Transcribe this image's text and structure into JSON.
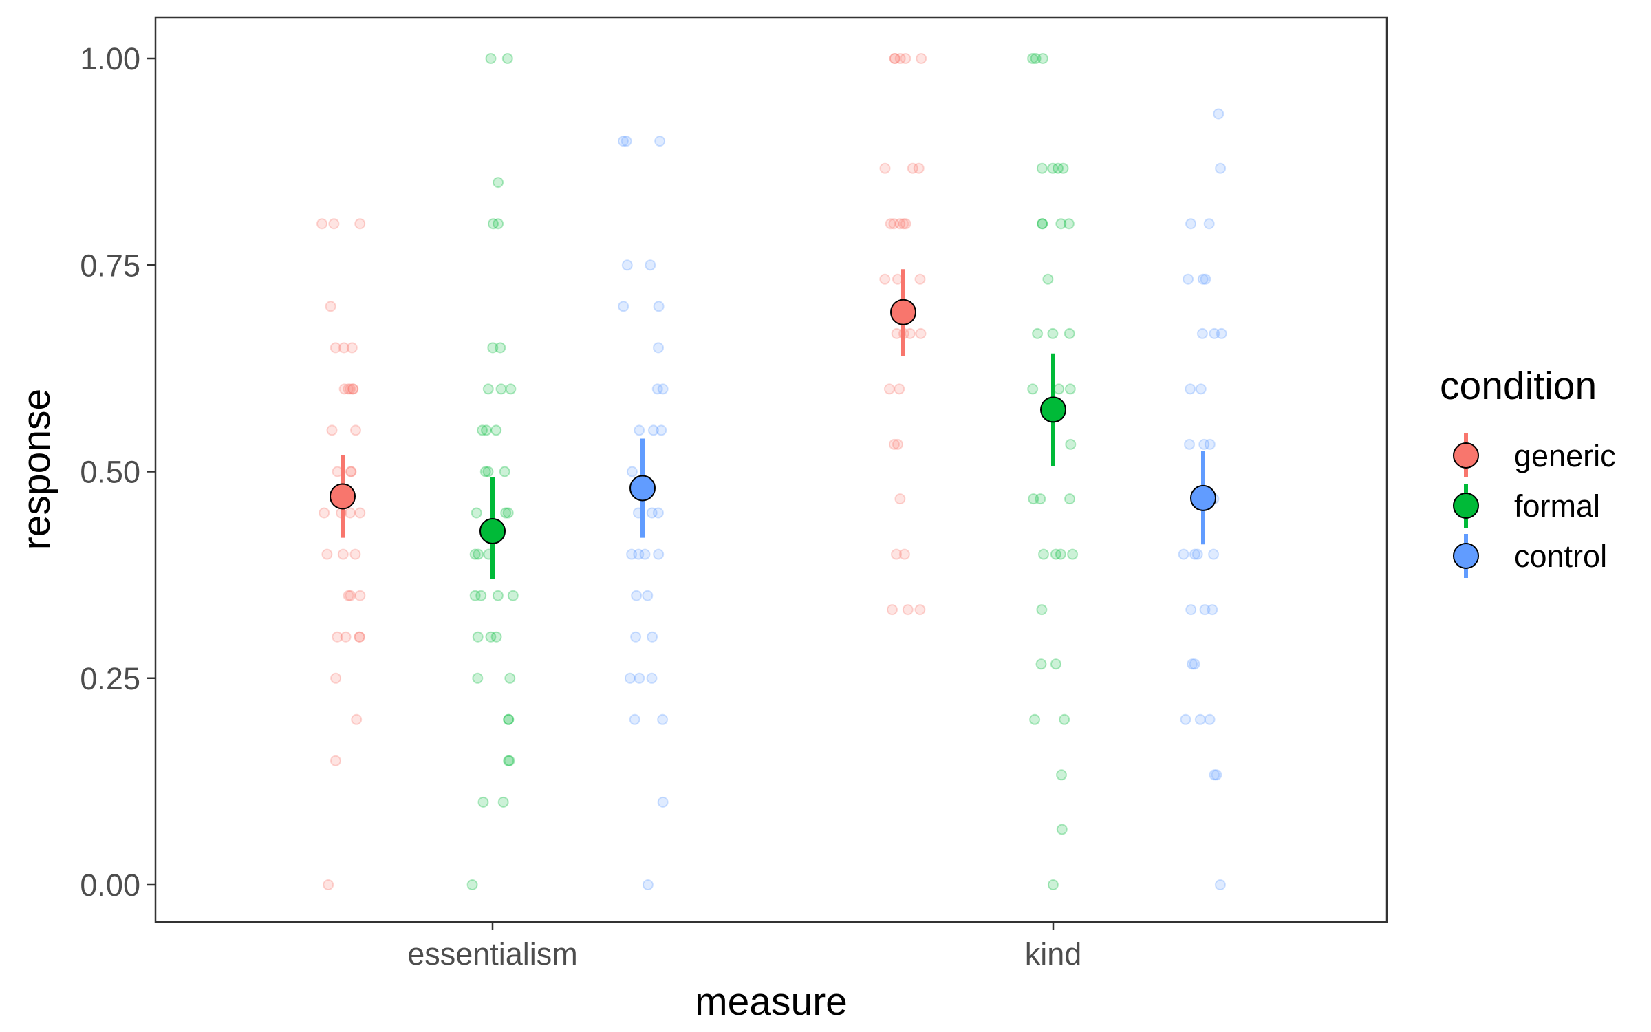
{
  "chart_data": {
    "type": "scatter",
    "xlabel": "measure",
    "ylabel": "response",
    "categories": [
      "essentialism",
      "kind"
    ],
    "ylim": [
      -0.05,
      1.05
    ],
    "yticks": [
      "0.00",
      "0.25",
      "0.50",
      "0.75",
      "1.00"
    ],
    "grid": false,
    "legend": {
      "title": "condition",
      "position": "right",
      "entries": [
        "generic",
        "formal",
        "control"
      ]
    },
    "colors": {
      "generic": "#F8766D",
      "formal": "#00BA38",
      "control": "#619CFF"
    },
    "series": [
      {
        "name": "generic",
        "summary": [
          {
            "category": "essentialism",
            "mean": 0.47,
            "ci_low": 0.42,
            "ci_high": 0.52
          },
          {
            "category": "kind",
            "mean": 0.693,
            "ci_low": 0.64,
            "ci_high": 0.745
          }
        ],
        "raw": [
          {
            "category": "essentialism",
            "values": [
              0.8,
              0.8,
              0.8,
              0.7,
              0.65,
              0.65,
              0.65,
              0.6,
              0.6,
              0.6,
              0.6,
              0.6,
              0.55,
              0.55,
              0.5,
              0.5,
              0.5,
              0.45,
              0.45,
              0.45,
              0.45,
              0.4,
              0.4,
              0.4,
              0.35,
              0.35,
              0.35,
              0.3,
              0.3,
              0.3,
              0.3,
              0.25,
              0.2,
              0.15,
              0.0
            ]
          },
          {
            "category": "kind",
            "values": [
              1.0,
              1.0,
              1.0,
              1.0,
              1.0,
              0.867,
              0.867,
              0.867,
              0.8,
              0.8,
              0.8,
              0.8,
              0.8,
              0.733,
              0.733,
              0.733,
              0.667,
              0.667,
              0.667,
              0.667,
              0.6,
              0.6,
              0.533,
              0.533,
              0.467,
              0.4,
              0.4,
              0.333,
              0.333,
              0.333
            ]
          }
        ]
      },
      {
        "name": "formal",
        "summary": [
          {
            "category": "essentialism",
            "mean": 0.428,
            "ci_low": 0.37,
            "ci_high": 0.493
          },
          {
            "category": "kind",
            "mean": 0.575,
            "ci_low": 0.507,
            "ci_high": 0.643
          }
        ],
        "raw": [
          {
            "category": "essentialism",
            "values": [
              1.0,
              1.0,
              0.85,
              0.8,
              0.8,
              0.65,
              0.65,
              0.6,
              0.6,
              0.6,
              0.55,
              0.55,
              0.55,
              0.5,
              0.5,
              0.5,
              0.45,
              0.45,
              0.45,
              0.4,
              0.4,
              0.4,
              0.35,
              0.35,
              0.35,
              0.35,
              0.3,
              0.3,
              0.3,
              0.25,
              0.25,
              0.2,
              0.2,
              0.15,
              0.15,
              0.1,
              0.1,
              0.0
            ]
          },
          {
            "category": "kind",
            "values": [
              1.0,
              1.0,
              1.0,
              0.867,
              0.867,
              0.867,
              0.867,
              0.8,
              0.8,
              0.8,
              0.8,
              0.733,
              0.667,
              0.667,
              0.667,
              0.6,
              0.6,
              0.6,
              0.533,
              0.467,
              0.467,
              0.467,
              0.4,
              0.4,
              0.4,
              0.4,
              0.333,
              0.267,
              0.267,
              0.2,
              0.2,
              0.133,
              0.067,
              0.0
            ]
          }
        ]
      },
      {
        "name": "control",
        "summary": [
          {
            "category": "essentialism",
            "mean": 0.48,
            "ci_low": 0.42,
            "ci_high": 0.54
          },
          {
            "category": "kind",
            "mean": 0.468,
            "ci_low": 0.412,
            "ci_high": 0.525
          }
        ],
        "raw": [
          {
            "category": "essentialism",
            "values": [
              0.9,
              0.9,
              0.9,
              0.75,
              0.75,
              0.7,
              0.7,
              0.65,
              0.6,
              0.6,
              0.55,
              0.55,
              0.55,
              0.5,
              0.45,
              0.45,
              0.45,
              0.4,
              0.4,
              0.4,
              0.4,
              0.35,
              0.35,
              0.3,
              0.3,
              0.25,
              0.25,
              0.25,
              0.2,
              0.2,
              0.1,
              0.0
            ]
          },
          {
            "category": "kind",
            "values": [
              0.933,
              0.867,
              0.8,
              0.8,
              0.733,
              0.733,
              0.733,
              0.667,
              0.667,
              0.667,
              0.6,
              0.6,
              0.533,
              0.533,
              0.533,
              0.467,
              0.467,
              0.467,
              0.4,
              0.4,
              0.4,
              0.4,
              0.333,
              0.333,
              0.333,
              0.267,
              0.267,
              0.2,
              0.2,
              0.2,
              0.133,
              0.133,
              0.0
            ]
          }
        ]
      }
    ]
  }
}
